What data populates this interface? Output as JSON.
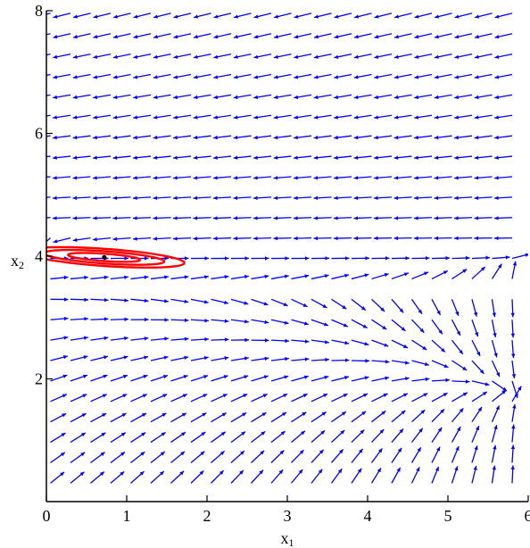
{
  "chart_data": {
    "type": "vector-field",
    "xlabel": {
      "main": "x",
      "sub": "1"
    },
    "ylabel": {
      "main": "x",
      "sub": "2"
    },
    "xlim": [
      0,
      6
    ],
    "ylim": [
      0,
      8
    ],
    "x_ticks": [
      {
        "value": 0,
        "label": "0"
      },
      {
        "value": 1,
        "label": "1"
      },
      {
        "value": 2,
        "label": "2"
      },
      {
        "value": 3,
        "label": "3"
      },
      {
        "value": 4,
        "label": "4"
      },
      {
        "value": 5,
        "label": "5"
      },
      {
        "value": 6,
        "label": "6"
      }
    ],
    "y_ticks": [
      {
        "value": 2,
        "label": "2"
      },
      {
        "value": 4,
        "label": "4"
      },
      {
        "value": 6,
        "label": "6"
      },
      {
        "value": 8,
        "label": "8"
      }
    ],
    "arrow_color": "#0000ff",
    "trajectory_color": "#ff0000",
    "equilibrium": {
      "x": 0.72,
      "y": 3.98
    },
    "field": {
      "x_start": 0.05,
      "x_step": 0.25,
      "x_count": 24,
      "y_start": 0.3,
      "y_step": 0.333,
      "y_count": 24,
      "center": [
        0.72,
        3.98
      ]
    },
    "trajectory": {
      "center": [
        0.72,
        3.98
      ],
      "tilt_per_unit_x": -0.09,
      "rings": [
        {
          "rx": 0.45,
          "ry": 0.06
        },
        {
          "rx": 0.75,
          "ry": 0.1
        },
        {
          "rx": 1.0,
          "ry": 0.14
        }
      ]
    }
  }
}
